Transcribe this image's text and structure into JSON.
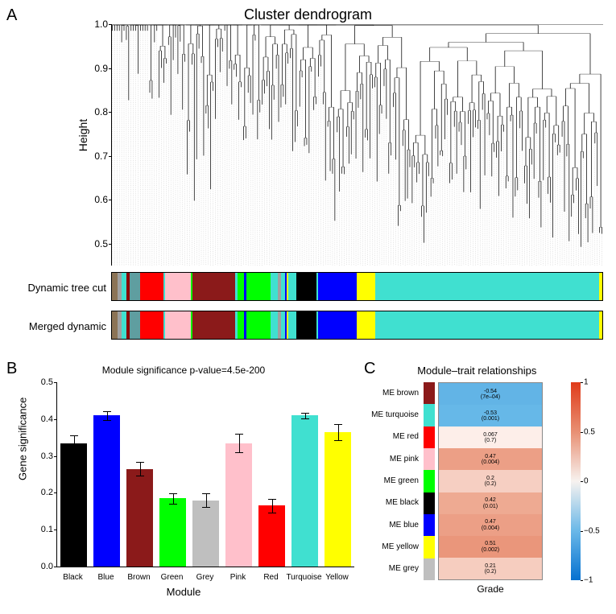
{
  "panelA": {
    "label": "A",
    "title": "Cluster dendrogram",
    "ylabel": "Height",
    "ylim": [
      0.45,
      1.0
    ],
    "yticks": [
      0.5,
      0.6,
      0.7,
      0.8,
      0.9,
      1.0
    ],
    "dendrogram": {
      "line_color": "#000000",
      "background": "#ffffff",
      "dotted_guide_color": "#888888",
      "n_leaves": 210
    },
    "row_labels": [
      "Dynamic tree cut",
      "Merged dynamic"
    ],
    "color_bands": {
      "dynamic_tree_cut": [
        {
          "w": 1.0,
          "c": "#8b7355"
        },
        {
          "w": 0.6,
          "c": "#a0a0a0"
        },
        {
          "w": 0.8,
          "c": "#40e0d0"
        },
        {
          "w": 0.6,
          "c": "#8b0000"
        },
        {
          "w": 1.8,
          "c": "#5f9ea0"
        },
        {
          "w": 0.5,
          "c": "#ff0000"
        },
        {
          "w": 3.5,
          "c": "#ff0000"
        },
        {
          "w": 0.3,
          "c": "#40e0d0"
        },
        {
          "w": 0.5,
          "c": "#ffc0cb"
        },
        {
          "w": 3.8,
          "c": "#ffc0cb"
        },
        {
          "w": 0.3,
          "c": "#00ff00"
        },
        {
          "w": 7.2,
          "c": "#8b1a1a"
        },
        {
          "w": 0.4,
          "c": "#40e0d0"
        },
        {
          "w": 1.2,
          "c": "#00ff00"
        },
        {
          "w": 0.3,
          "c": "#0000ff"
        },
        {
          "w": 4.2,
          "c": "#00ff00"
        },
        {
          "w": 1.2,
          "c": "#40e0d0"
        },
        {
          "w": 0.5,
          "c": "#a0a0a0"
        },
        {
          "w": 0.7,
          "c": "#40e0d0"
        },
        {
          "w": 0.3,
          "c": "#0000ff"
        },
        {
          "w": 0.3,
          "c": "#ffff00"
        },
        {
          "w": 0.3,
          "c": "#40e0d0"
        },
        {
          "w": 1.0,
          "c": "#40e0d0"
        },
        {
          "w": 3.5,
          "c": "#000000"
        },
        {
          "w": 0.3,
          "c": "#40e0d0"
        },
        {
          "w": 6.5,
          "c": "#0000ff"
        },
        {
          "w": 3.2,
          "c": "#ffff00"
        },
        {
          "w": 38,
          "c": "#40e0d0"
        },
        {
          "w": 0.5,
          "c": "#ffff00"
        }
      ],
      "merged_dynamic": [
        {
          "w": 1.0,
          "c": "#8b7355"
        },
        {
          "w": 0.6,
          "c": "#a0a0a0"
        },
        {
          "w": 0.8,
          "c": "#40e0d0"
        },
        {
          "w": 0.6,
          "c": "#8b0000"
        },
        {
          "w": 1.8,
          "c": "#5f9ea0"
        },
        {
          "w": 0.5,
          "c": "#ff0000"
        },
        {
          "w": 3.5,
          "c": "#ff0000"
        },
        {
          "w": 0.3,
          "c": "#40e0d0"
        },
        {
          "w": 0.5,
          "c": "#ffc0cb"
        },
        {
          "w": 3.8,
          "c": "#ffc0cb"
        },
        {
          "w": 0.3,
          "c": "#00ff00"
        },
        {
          "w": 7.2,
          "c": "#8b1a1a"
        },
        {
          "w": 0.4,
          "c": "#40e0d0"
        },
        {
          "w": 1.2,
          "c": "#00ff00"
        },
        {
          "w": 0.3,
          "c": "#0000ff"
        },
        {
          "w": 4.2,
          "c": "#00ff00"
        },
        {
          "w": 1.2,
          "c": "#40e0d0"
        },
        {
          "w": 0.5,
          "c": "#a0a0a0"
        },
        {
          "w": 0.7,
          "c": "#40e0d0"
        },
        {
          "w": 0.3,
          "c": "#0000ff"
        },
        {
          "w": 0.3,
          "c": "#ffff00"
        },
        {
          "w": 0.3,
          "c": "#40e0d0"
        },
        {
          "w": 1.0,
          "c": "#40e0d0"
        },
        {
          "w": 3.5,
          "c": "#000000"
        },
        {
          "w": 0.3,
          "c": "#40e0d0"
        },
        {
          "w": 6.5,
          "c": "#0000ff"
        },
        {
          "w": 3.2,
          "c": "#ffff00"
        },
        {
          "w": 38,
          "c": "#40e0d0"
        },
        {
          "w": 0.5,
          "c": "#ffff00"
        }
      ]
    }
  },
  "panelB": {
    "label": "B",
    "title": "Module significance p-value=4.5e-200",
    "xlabel": "Module",
    "ylabel": "Gene significance",
    "ylim": [
      0,
      0.5
    ],
    "yticks": [
      0.0,
      0.1,
      0.2,
      0.3,
      0.4,
      0.5
    ],
    "categories": [
      "Black",
      "Blue",
      "Brown",
      "Green",
      "Grey",
      "Pink",
      "Red",
      "Turquoise",
      "Yellow"
    ],
    "values": [
      0.335,
      0.41,
      0.265,
      0.185,
      0.18,
      0.335,
      0.165,
      0.41,
      0.365
    ],
    "errors": [
      0.02,
      0.012,
      0.018,
      0.014,
      0.018,
      0.025,
      0.018,
      0.008,
      0.022
    ],
    "bar_colors": [
      "#000000",
      "#0000ff",
      "#8b1a1a",
      "#00ff00",
      "#bfbfbf",
      "#ffc0cb",
      "#ff0000",
      "#40e0d0",
      "#ffff00"
    ],
    "bar_width": 0.8,
    "axis_fontsize": 11,
    "label_fontsize": 13,
    "title_fontsize": 12
  },
  "panelC": {
    "label": "C",
    "title": "Module–trait relationships",
    "xlabel": "Grade",
    "rows": [
      {
        "label": "ME brown",
        "key_color": "#8b1a1a",
        "value": -0.54,
        "p": "7e–04",
        "cell_color": "#62b4e6"
      },
      {
        "label": "ME turquoise",
        "key_color": "#40e0d0",
        "value": -0.53,
        "p": "0.001",
        "cell_color": "#66b8e8"
      },
      {
        "label": "ME red",
        "key_color": "#ff0000",
        "value": 0.067,
        "p": "0.7",
        "cell_color": "#fdeee9"
      },
      {
        "label": "ME pink",
        "key_color": "#ffc0cb",
        "value": 0.47,
        "p": "0.004",
        "cell_color": "#ec9f86"
      },
      {
        "label": "ME green",
        "key_color": "#00ff00",
        "value": 0.2,
        "p": "0.2",
        "cell_color": "#f6cfc2"
      },
      {
        "label": "ME black",
        "key_color": "#000000",
        "value": 0.42,
        "p": "0.01",
        "cell_color": "#eeaa92"
      },
      {
        "label": "ME blue",
        "key_color": "#0000ff",
        "value": 0.47,
        "p": "0.004",
        "cell_color": "#ec9f86"
      },
      {
        "label": "ME yellow",
        "key_color": "#ffff00",
        "value": 0.51,
        "p": "0.002",
        "cell_color": "#ea967b"
      },
      {
        "label": "ME grey",
        "key_color": "#bfbfbf",
        "value": 0.21,
        "p": "0.2",
        "cell_color": "#f6cdbf"
      }
    ],
    "colorscale": {
      "min": -1,
      "max": 1,
      "ticks": [
        -1,
        -0.5,
        0,
        0.5,
        1
      ],
      "gradient": [
        "#0571d0",
        "#6ab8e8",
        "#f7f2ef",
        "#e88f73",
        "#e03b1a"
      ]
    },
    "cell_fontsize": 7,
    "rowlabel_fontsize": 10,
    "title_fontsize": 13
  }
}
